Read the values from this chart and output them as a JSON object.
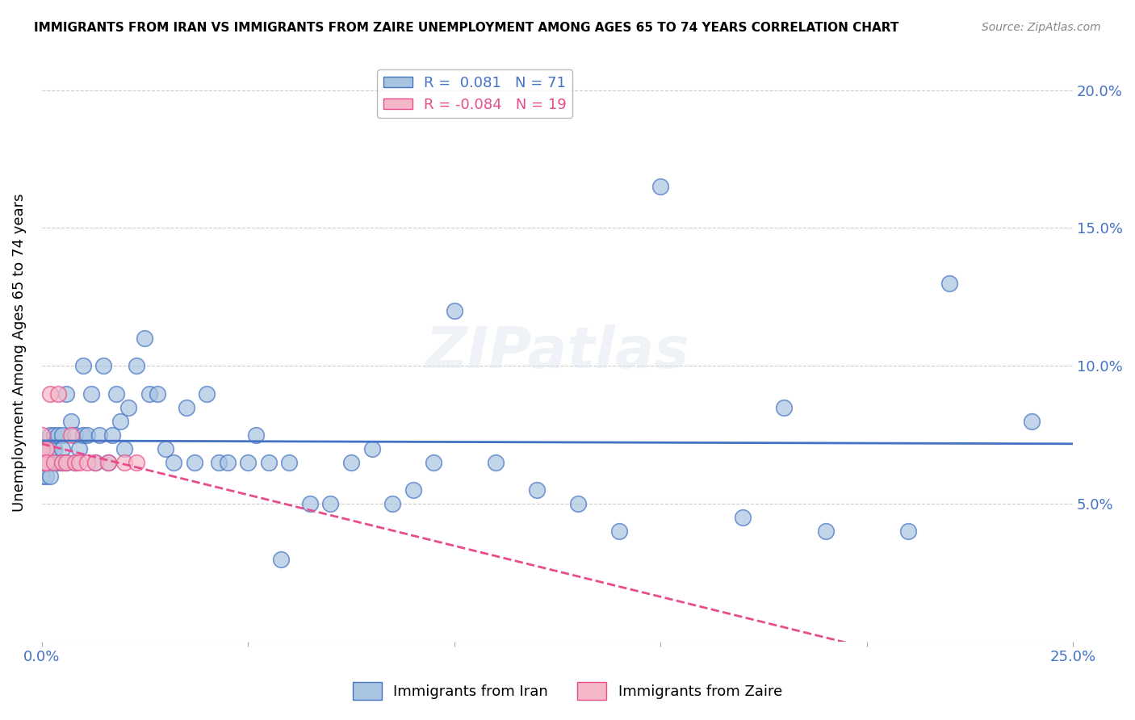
{
  "title": "IMMIGRANTS FROM IRAN VS IMMIGRANTS FROM ZAIRE UNEMPLOYMENT AMONG AGES 65 TO 74 YEARS CORRELATION CHART",
  "source": "Source: ZipAtlas.com",
  "xlabel": "",
  "ylabel": "Unemployment Among Ages 65 to 74 years",
  "xlim": [
    0.0,
    0.25
  ],
  "ylim": [
    0.0,
    0.21
  ],
  "xticks": [
    0.0,
    0.05,
    0.1,
    0.15,
    0.2,
    0.25
  ],
  "yticks": [
    0.0,
    0.05,
    0.1,
    0.15,
    0.2
  ],
  "xticklabels": [
    "0.0%",
    "",
    "",
    "",
    "",
    "25.0%"
  ],
  "yticklabels": [
    "",
    "5.0%",
    "10.0%",
    "15.0%",
    "20.0%"
  ],
  "iran_R": 0.081,
  "iran_N": 71,
  "zaire_R": -0.084,
  "zaire_N": 19,
  "iran_color": "#a8c4e0",
  "iran_line_color": "#4472c4",
  "zaire_color": "#f4b8c8",
  "zaire_line_color": "#e84c8b",
  "watermark": "ZIPatlas",
  "iran_x": [
    0.0,
    0.0,
    0.001,
    0.001,
    0.001,
    0.002,
    0.002,
    0.002,
    0.002,
    0.003,
    0.003,
    0.003,
    0.004,
    0.004,
    0.005,
    0.005,
    0.005,
    0.006,
    0.006,
    0.007,
    0.008,
    0.008,
    0.009,
    0.01,
    0.01,
    0.011,
    0.012,
    0.013,
    0.014,
    0.015,
    0.016,
    0.017,
    0.018,
    0.019,
    0.02,
    0.021,
    0.023,
    0.025,
    0.026,
    0.028,
    0.03,
    0.032,
    0.035,
    0.037,
    0.04,
    0.043,
    0.045,
    0.05,
    0.052,
    0.055,
    0.058,
    0.06,
    0.065,
    0.07,
    0.075,
    0.08,
    0.085,
    0.09,
    0.095,
    0.1,
    0.11,
    0.12,
    0.13,
    0.14,
    0.15,
    0.17,
    0.18,
    0.19,
    0.21,
    0.22,
    0.24
  ],
  "iran_y": [
    0.07,
    0.06,
    0.07,
    0.065,
    0.06,
    0.075,
    0.07,
    0.065,
    0.06,
    0.065,
    0.07,
    0.075,
    0.065,
    0.075,
    0.075,
    0.07,
    0.065,
    0.09,
    0.065,
    0.08,
    0.075,
    0.065,
    0.07,
    0.1,
    0.075,
    0.075,
    0.09,
    0.065,
    0.075,
    0.1,
    0.065,
    0.075,
    0.09,
    0.08,
    0.07,
    0.085,
    0.1,
    0.11,
    0.09,
    0.09,
    0.07,
    0.065,
    0.085,
    0.065,
    0.09,
    0.065,
    0.065,
    0.065,
    0.075,
    0.065,
    0.03,
    0.065,
    0.05,
    0.05,
    0.065,
    0.07,
    0.05,
    0.055,
    0.065,
    0.12,
    0.065,
    0.055,
    0.05,
    0.04,
    0.165,
    0.045,
    0.085,
    0.04,
    0.04,
    0.13,
    0.08
  ],
  "zaire_x": [
    0.0,
    0.0,
    0.0,
    0.001,
    0.001,
    0.001,
    0.002,
    0.003,
    0.004,
    0.005,
    0.006,
    0.007,
    0.008,
    0.009,
    0.011,
    0.013,
    0.016,
    0.02,
    0.023
  ],
  "zaire_y": [
    0.065,
    0.07,
    0.075,
    0.065,
    0.07,
    0.065,
    0.09,
    0.065,
    0.09,
    0.065,
    0.065,
    0.075,
    0.065,
    0.065,
    0.065,
    0.065,
    0.065,
    0.065,
    0.065
  ]
}
